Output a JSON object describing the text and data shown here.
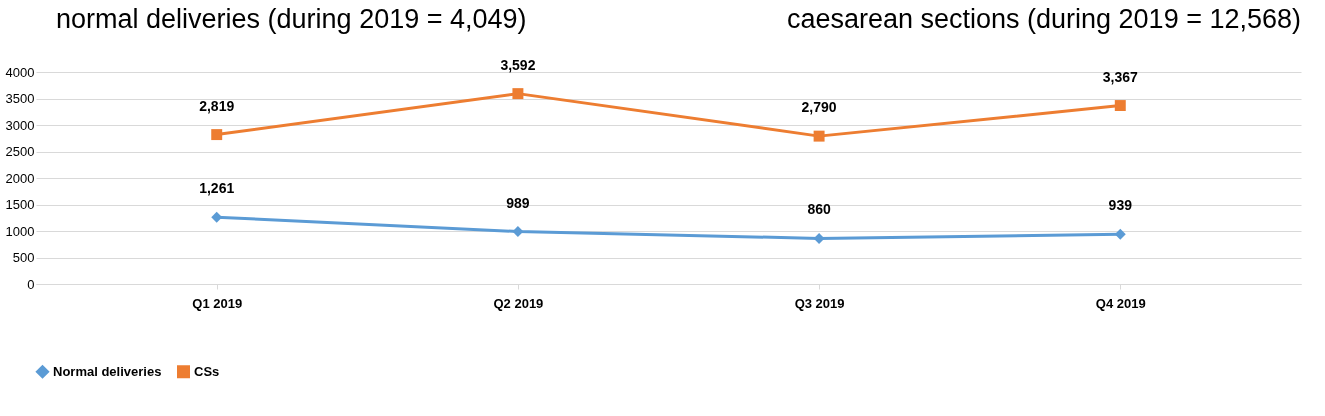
{
  "chart_data": {
    "type": "line",
    "title": "normal deliveries (during 2019 = 4,049)",
    "subtitle": "caesarean sections (during 2019 = 12,568)",
    "categories": [
      "Q1 2019",
      "Q2 2019",
      "Q3 2019",
      "Q4 2019"
    ],
    "series": [
      {
        "name": "Normal deliveries",
        "color": "#5b9bd5",
        "marker": "diamond",
        "values": [
          1261,
          989,
          860,
          939
        ],
        "value_labels": [
          "1,261",
          "989",
          "860",
          "939"
        ]
      },
      {
        "name": "CSs",
        "color": "#ed7d31",
        "marker": "square",
        "values": [
          2819,
          3592,
          2790,
          3367
        ],
        "value_labels": [
          "2,819",
          "3,592",
          "2,790",
          "3,367"
        ]
      }
    ],
    "ylim": [
      0,
      4000
    ],
    "yticks": [
      0,
      500,
      1000,
      1500,
      2000,
      2500,
      3000,
      3500,
      4000
    ],
    "grid": "y",
    "legend": "bottom",
    "line_style": "solid"
  }
}
